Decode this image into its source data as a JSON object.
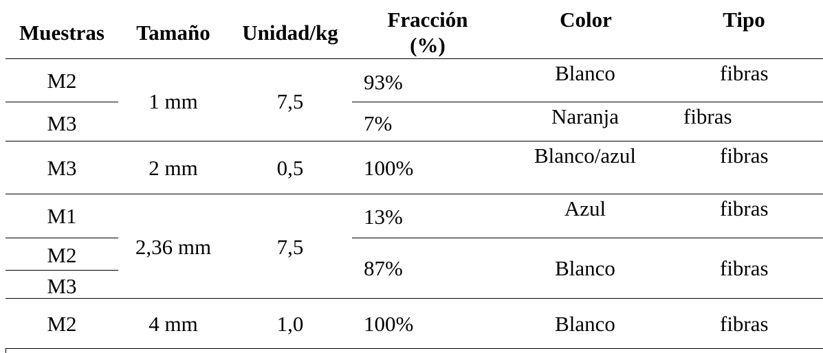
{
  "table": {
    "headers": {
      "muestras": "Muestras",
      "tamano": "Tamaño",
      "unidad": "Unidad/kg",
      "fraccion_line1": "Fracción",
      "fraccion_line2": "(%)",
      "color": "Color",
      "tipo": "Tipo"
    },
    "rows": [
      {
        "muestra": "M2",
        "tamano": "1 mm",
        "unidad": "7,5",
        "fraccion": "93%",
        "color": "Blanco",
        "tipo": "fibras"
      },
      {
        "muestra": "M3",
        "fraccion": "7%",
        "color": "Naranja",
        "tipo": "fibras"
      },
      {
        "muestra": "M3",
        "tamano": "2 mm",
        "unidad": "0,5",
        "fraccion": "100%",
        "color": "Blanco/azul",
        "tipo": "fibras"
      },
      {
        "muestra": "M1",
        "tamano": "2,36 mm",
        "unidad": "7,5",
        "fraccion": "13%",
        "color": "Azul",
        "tipo": "fibras"
      },
      {
        "muestra": "M2",
        "fraccion": "87%",
        "color": "Blanco",
        "tipo": "fibras"
      },
      {
        "muestra": "M3"
      },
      {
        "muestra": "M2",
        "tamano": "4 mm",
        "unidad": "1,0",
        "fraccion": "100%",
        "color": "Blanco",
        "tipo": "fibras"
      }
    ]
  }
}
